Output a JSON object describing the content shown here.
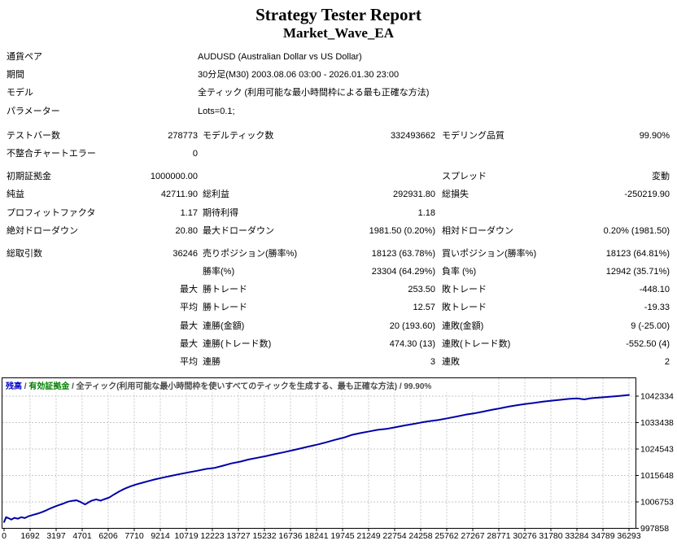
{
  "title": "Strategy Tester Report",
  "subtitle": "Market_Wave_EA",
  "info_rows": [
    {
      "label": "通貨ペア",
      "value": "AUDUSD (Australian Dollar vs US Dollar)"
    },
    {
      "label": "期間",
      "value": "30分足(M30) 2003.08.06 03:00 - 2026.01.30 23:00"
    },
    {
      "label": "モデル",
      "value": "全ティック (利用可能な最小時間枠による最も正確な方法)"
    },
    {
      "label": "パラメーター",
      "value": "Lots=0.1;"
    }
  ],
  "stat_rows": [
    {
      "gap": false,
      "c1": "テストバー数",
      "c2": "278773",
      "c3": "モデルティック数",
      "c4": "332493662",
      "c5": "モデリング品質",
      "c6": "99.90%"
    },
    {
      "gap": false,
      "c1": "不整合チャートエラー",
      "c2": "0",
      "c3": "",
      "c4": "",
      "c5": "",
      "c6": ""
    },
    {
      "gap": true,
      "c1": "初期証拠金",
      "c2": "1000000.00",
      "c3": "",
      "c4": "",
      "c5": "スプレッド",
      "c6": "変動"
    },
    {
      "gap": false,
      "c1": "純益",
      "c2": "42711.90",
      "c3": "総利益",
      "c4": "292931.80",
      "c5": "総損失",
      "c6": "-250219.90"
    },
    {
      "gap": false,
      "c1": "プロフィットファクタ",
      "c2": "1.17",
      "c3": "期待利得",
      "c4": "1.18",
      "c5": "",
      "c6": ""
    },
    {
      "gap": false,
      "c1": "絶対ドローダウン",
      "c2": "20.80",
      "c3": "最大ドローダウン",
      "c4": "1981.50 (0.20%)",
      "c5": "相対ドローダウン",
      "c6": "0.20% (1981.50)"
    },
    {
      "gap": true,
      "c1": "総取引数",
      "c2": "36246",
      "c3": "売りポジション(勝率%)",
      "c4": "18123 (63.78%)",
      "c5": "買いポジション(勝率%)",
      "c6": "18123 (64.81%)"
    },
    {
      "gap": false,
      "c1": "",
      "c2": "",
      "c3": "勝率(%)",
      "c4": "23304 (64.29%)",
      "c5": "負率 (%)",
      "c6": "12942 (35.71%)"
    },
    {
      "gap": false,
      "c1": "",
      "c2": "最大",
      "c3": "勝トレード",
      "c4": "253.50",
      "c5": "敗トレード",
      "c6": "-448.10"
    },
    {
      "gap": false,
      "c1": "",
      "c2": "平均",
      "c3": "勝トレード",
      "c4": "12.57",
      "c5": "敗トレード",
      "c6": "-19.33"
    },
    {
      "gap": false,
      "c1": "",
      "c2": "最大",
      "c3": "連勝(金額)",
      "c4": "20 (193.60)",
      "c5": "連敗(金額)",
      "c6": "9 (-25.00)"
    },
    {
      "gap": false,
      "c1": "",
      "c2": "最大",
      "c3": "連勝(トレード数)",
      "c4": "474.30 (13)",
      "c5": "連敗(トレード数)",
      "c6": "-552.50 (4)"
    },
    {
      "gap": false,
      "c1": "",
      "c2": "平均",
      "c3": "連勝",
      "c4": "3",
      "c5": "連敗",
      "c6": "2"
    }
  ],
  "chart_data": {
    "type": "line",
    "title_parts": [
      {
        "text": "残高",
        "color": "#0000c8"
      },
      {
        "text": " / ",
        "color": "#4a4a4a"
      },
      {
        "text": "有効証拠金",
        "color": "#008000"
      },
      {
        "text": " / 全ティック(利用可能な最小時間枠を使いすべてのティックを生成する、最も正確な方法) / 99.90%",
        "color": "#4a4a4a"
      }
    ],
    "xlabel": "",
    "ylabel": "",
    "x_ticks": [
      0,
      1692,
      3197,
      4701,
      6206,
      7710,
      9214,
      10719,
      12223,
      13727,
      15232,
      16736,
      18241,
      19745,
      21249,
      22754,
      24258,
      25762,
      27267,
      28771,
      30276,
      31780,
      33284,
      34789,
      36293
    ],
    "y_ticks": [
      997858,
      1006753,
      1015648,
      1024543,
      1033438,
      1042334
    ],
    "x_range": [
      0,
      36293
    ],
    "y_range": [
      997858,
      1046781
    ],
    "grid": true,
    "colors": {
      "grid": "#c6c6c6",
      "axis": "#000000",
      "background": "#ffffff"
    },
    "series": [
      {
        "name": "残高",
        "color": "#0000a8",
        "points": [
          [
            0,
            1000000
          ],
          [
            120,
            1001600
          ],
          [
            250,
            1001300
          ],
          [
            420,
            1000800
          ],
          [
            600,
            1001400
          ],
          [
            800,
            1001100
          ],
          [
            1000,
            1001600
          ],
          [
            1200,
            1001300
          ],
          [
            1450,
            1002000
          ],
          [
            1692,
            1002400
          ],
          [
            1950,
            1002800
          ],
          [
            2200,
            1003300
          ],
          [
            2450,
            1003900
          ],
          [
            2700,
            1004600
          ],
          [
            3000,
            1005300
          ],
          [
            3197,
            1005700
          ],
          [
            3450,
            1006200
          ],
          [
            3700,
            1006800
          ],
          [
            3950,
            1007100
          ],
          [
            4200,
            1007300
          ],
          [
            4450,
            1006700
          ],
          [
            4701,
            1005900
          ],
          [
            4900,
            1006600
          ],
          [
            5100,
            1007200
          ],
          [
            5350,
            1007600
          ],
          [
            5600,
            1007200
          ],
          [
            5850,
            1007700
          ],
          [
            6100,
            1008200
          ],
          [
            6400,
            1009300
          ],
          [
            6700,
            1010300
          ],
          [
            7000,
            1011200
          ],
          [
            7350,
            1012000
          ],
          [
            7710,
            1012700
          ],
          [
            8050,
            1013200
          ],
          [
            8400,
            1013800
          ],
          [
            8750,
            1014300
          ],
          [
            9214,
            1014900
          ],
          [
            9700,
            1015500
          ],
          [
            10200,
            1016100
          ],
          [
            10719,
            1016700
          ],
          [
            11200,
            1017200
          ],
          [
            11700,
            1017800
          ],
          [
            12223,
            1018200
          ],
          [
            12700,
            1018900
          ],
          [
            13200,
            1019700
          ],
          [
            13727,
            1020300
          ],
          [
            14200,
            1021000
          ],
          [
            14700,
            1021600
          ],
          [
            15232,
            1022200
          ],
          [
            15700,
            1022800
          ],
          [
            16200,
            1023400
          ],
          [
            16736,
            1024100
          ],
          [
            17200,
            1024700
          ],
          [
            17700,
            1025400
          ],
          [
            18241,
            1026100
          ],
          [
            18700,
            1026800
          ],
          [
            19200,
            1027600
          ],
          [
            19745,
            1028400
          ],
          [
            20200,
            1029300
          ],
          [
            20700,
            1029900
          ],
          [
            21249,
            1030500
          ],
          [
            21700,
            1031000
          ],
          [
            22200,
            1031300
          ],
          [
            22754,
            1031900
          ],
          [
            23300,
            1032500
          ],
          [
            23800,
            1033000
          ],
          [
            24258,
            1033500
          ],
          [
            24700,
            1033900
          ],
          [
            25200,
            1034300
          ],
          [
            25762,
            1034900
          ],
          [
            26300,
            1035500
          ],
          [
            26800,
            1036100
          ],
          [
            27267,
            1036500
          ],
          [
            27800,
            1037100
          ],
          [
            28300,
            1037700
          ],
          [
            28771,
            1038200
          ],
          [
            29300,
            1038800
          ],
          [
            29800,
            1039300
          ],
          [
            30276,
            1039700
          ],
          [
            30800,
            1040100
          ],
          [
            31300,
            1040500
          ],
          [
            31780,
            1040800
          ],
          [
            32300,
            1041100
          ],
          [
            32800,
            1041400
          ],
          [
            33284,
            1041600
          ],
          [
            33700,
            1041250
          ],
          [
            34100,
            1041650
          ],
          [
            34789,
            1041950
          ],
          [
            35300,
            1042200
          ],
          [
            35800,
            1042450
          ],
          [
            36293,
            1042730
          ]
        ]
      }
    ]
  }
}
